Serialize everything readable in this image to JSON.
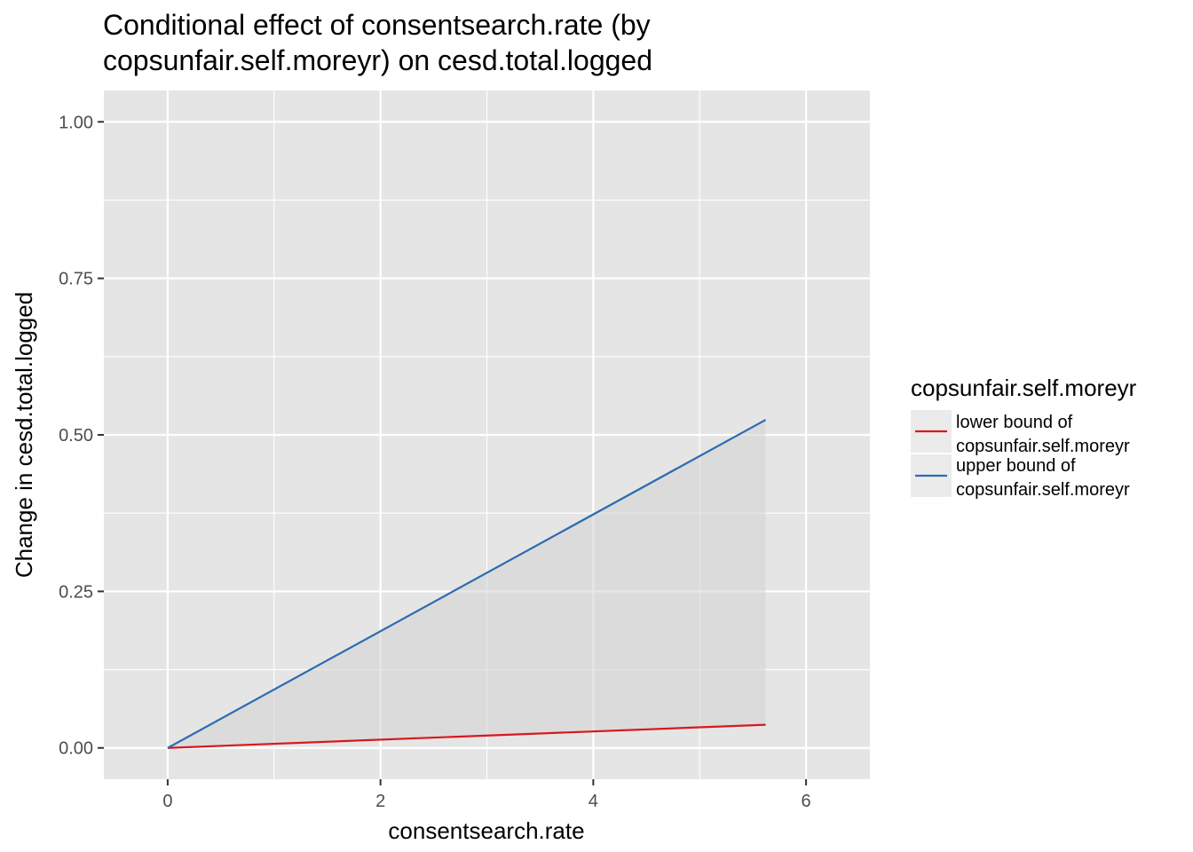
{
  "chart_data": {
    "type": "line",
    "title_line1": "Conditional effect of consentsearch.rate (by",
    "title_line2": "copsunfair.self.moreyr) on cesd.total.logged",
    "xlabel": "consentsearch.rate",
    "ylabel": "Change in cesd.total.logged",
    "xlim": [
      -0.6,
      6.6
    ],
    "ylim": [
      -0.05,
      1.05
    ],
    "x_ticks": [
      0,
      2,
      4,
      6
    ],
    "x_tick_labels": [
      "0",
      "2",
      "4",
      "6"
    ],
    "y_ticks": [
      0,
      0.25,
      0.5,
      0.75,
      1.0
    ],
    "y_tick_labels": [
      "0.00",
      "0.25",
      "0.50",
      "0.75",
      "1.00"
    ],
    "grid": true,
    "legend_placement": "right",
    "legend_title": "copsunfair.self.moreyr",
    "ribbon": {
      "between": [
        "lower",
        "upper"
      ],
      "color": "#d3d3d3"
    },
    "series": [
      {
        "key": "lower",
        "name_line1": "lower bound of",
        "name_line2": "copsunfair.self.moreyr",
        "color": "#d7191c",
        "x": [
          0,
          5.62
        ],
        "y": [
          0,
          0.037
        ]
      },
      {
        "key": "upper",
        "name_line1": "upper bound of",
        "name_line2": "copsunfair.self.moreyr",
        "color": "#2c6cb0",
        "x": [
          0,
          5.62
        ],
        "y": [
          0,
          0.524
        ]
      }
    ],
    "colors": {
      "panel": "#e5e5e5",
      "grid": "#ffffff",
      "legend_key": "#ebebeb"
    }
  }
}
